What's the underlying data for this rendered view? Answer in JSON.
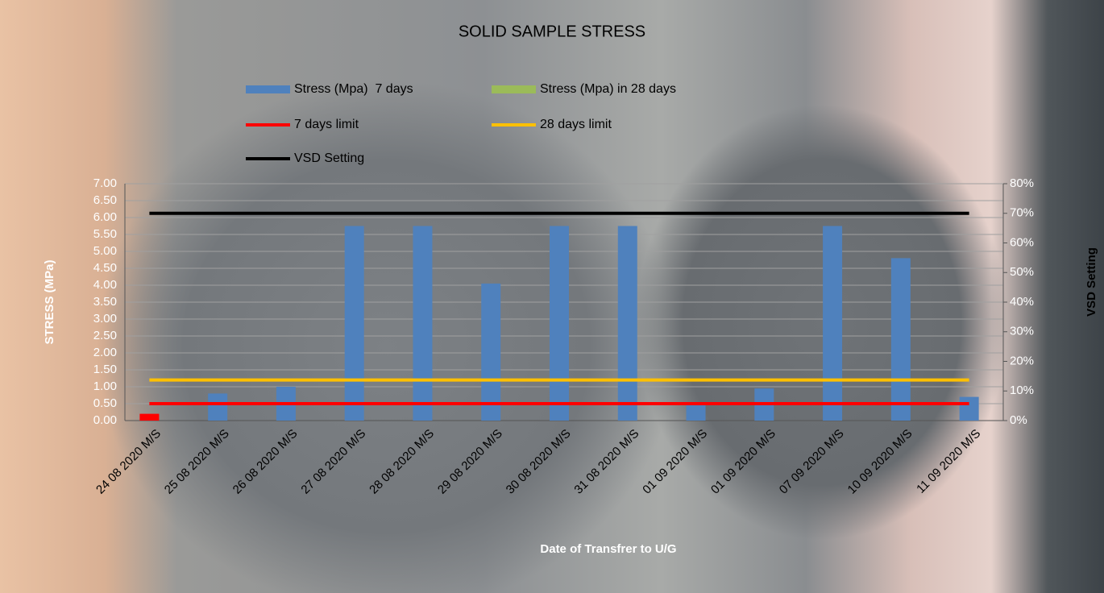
{
  "chart_data": {
    "type": "bar",
    "title": "SOLID SAMPLE STRESS",
    "x_label": "Date of Transfrer to U/G",
    "y_label": "STRESS (MPa)",
    "y2_label": "VSD Setting",
    "categories": [
      "24 08 2020 M/S",
      "25 08 2020 M/S",
      "26 08 2020 M/S",
      "27 08 2020 M/S",
      "28 08 2020 M/S",
      "29 08 2020 M/S",
      "30 08 2020 M/S",
      "31 08 2020 M/S",
      "01 09 2020 M/S",
      "01 09 2020 M/S",
      "07 09 2020 M/S",
      "10 09 2020 M/S",
      "11 09 2020 M/S"
    ],
    "ylim": [
      0,
      7
    ],
    "yticks": [
      {
        "value": 0,
        "label": "0.00"
      },
      {
        "value": 0.5,
        "label": "0.50"
      },
      {
        "value": 1,
        "label": "1.00"
      },
      {
        "value": 1.5,
        "label": "1.50"
      },
      {
        "value": 2,
        "label": "2.00"
      },
      {
        "value": 2.5,
        "label": "2.50"
      },
      {
        "value": 3,
        "label": "3.00"
      },
      {
        "value": 3.5,
        "label": "3.50"
      },
      {
        "value": 4,
        "label": "4.00"
      },
      {
        "value": 4.5,
        "label": "4.50"
      },
      {
        "value": 5,
        "label": "5.00"
      },
      {
        "value": 5.5,
        "label": "5.50"
      },
      {
        "value": 6,
        "label": "6.00"
      },
      {
        "value": 6.5,
        "label": "6.50"
      },
      {
        "value": 7,
        "label": "7.00"
      }
    ],
    "y2lim": [
      0,
      80
    ],
    "y2ticks": [
      {
        "value": 0,
        "label": "0%"
      },
      {
        "value": 10,
        "label": "10%"
      },
      {
        "value": 20,
        "label": "20%"
      },
      {
        "value": 30,
        "label": "30%"
      },
      {
        "value": 40,
        "label": "40%"
      },
      {
        "value": 50,
        "label": "50%"
      },
      {
        "value": 60,
        "label": "60%"
      },
      {
        "value": 70,
        "label": "70%"
      },
      {
        "value": 80,
        "label": "80%"
      }
    ],
    "grid": true,
    "series": [
      {
        "name": "Stress (Mpa)  7 days",
        "type": "bar",
        "color": "#4f81bd",
        "colors": [
          "#ff0000",
          "#4f81bd",
          "#4f81bd",
          "#4f81bd",
          "#4f81bd",
          "#4f81bd",
          "#4f81bd",
          "#4f81bd",
          "#4f81bd",
          "#4f81bd",
          "#4f81bd",
          "#4f81bd",
          "#4f81bd"
        ],
        "values": [
          0.2,
          0.8,
          1.0,
          5.75,
          5.75,
          4.05,
          5.75,
          5.75,
          0.45,
          0.95,
          5.75,
          4.8,
          0.7
        ]
      },
      {
        "name": "Stress (Mpa) in 28 days",
        "type": "bar",
        "color": "#9bbb59",
        "values": [
          null,
          null,
          null,
          null,
          null,
          null,
          null,
          null,
          null,
          null,
          null,
          null,
          null
        ]
      },
      {
        "name": "7 days limit",
        "type": "line",
        "color": "#ff0000",
        "values": [
          0.5,
          0.5,
          0.5,
          0.5,
          0.5,
          0.5,
          0.5,
          0.5,
          0.5,
          0.5,
          0.5,
          0.5,
          0.5
        ]
      },
      {
        "name": "28 days limit",
        "type": "line",
        "color": "#ffc000",
        "values": [
          1.2,
          1.2,
          1.2,
          1.2,
          1.2,
          1.2,
          1.2,
          1.2,
          1.2,
          1.2,
          1.2,
          1.2,
          1.2
        ]
      },
      {
        "name": "VSD Setting",
        "type": "line",
        "color": "#000000",
        "axis": "y2",
        "values": [
          70,
          70,
          70,
          70,
          70,
          70,
          70,
          70,
          70,
          70,
          70,
          70,
          70
        ]
      }
    ]
  }
}
